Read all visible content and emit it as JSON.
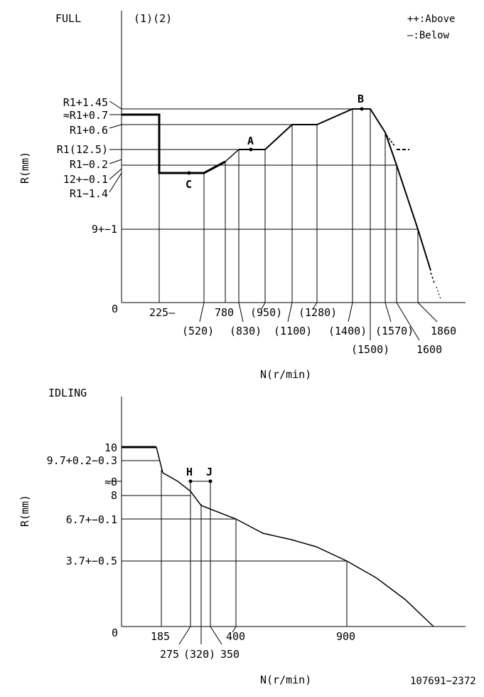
{
  "full": {
    "title": "FULL",
    "notes": "(1)(2)",
    "legend": {
      "above": "++:Above",
      "below": "—:Below"
    },
    "y_axis_label": "R(mm)",
    "x_axis_label": "N(r/min)",
    "origin_label": "0",
    "y_ticks": {
      "r1_plus_145": "R1+1.45",
      "approx_r1_plus_07": "≈R1+0.7",
      "r1_plus_06": "R1+0.6",
      "r1_125": "R1(12.5)",
      "r1_minus_02": "R1−0.2",
      "twelve_pm_01": "12+−0.1",
      "r1_minus_14": "R1−1.4",
      "nine_pm_1": "9+−1"
    },
    "x_ticks": {
      "n225": "225—",
      "n520": "(520)",
      "n780": "780",
      "n830": "(830)",
      "n950": "(950)",
      "n1100": "(1100)",
      "n1280": "(1280)",
      "n1400": "(1400)",
      "n1500": "(1500)",
      "n1570": "(1570)",
      "n1600": "1600",
      "n1860": "1860"
    },
    "points": {
      "a": "A",
      "b": "B",
      "c": "C"
    }
  },
  "idling": {
    "title": "IDLING",
    "y_axis_label": "R(mm)",
    "x_axis_label": "N(r/min)",
    "origin_label": "0",
    "y_ticks": {
      "ten": "10",
      "nine_seven": "9.7+0.2−0.3",
      "approx_eight": "≈8",
      "eight": "8",
      "six_seven": "6.7+−0.1",
      "three_seven": "3.7+−0.5"
    },
    "x_ticks": {
      "n185": "185",
      "n275": "275",
      "n320": "(320)",
      "n350": "350",
      "n400": "400",
      "n900": "900"
    },
    "points": {
      "h": "H",
      "j": "J"
    }
  },
  "footer": {
    "doc_number": "107691−2372"
  }
}
